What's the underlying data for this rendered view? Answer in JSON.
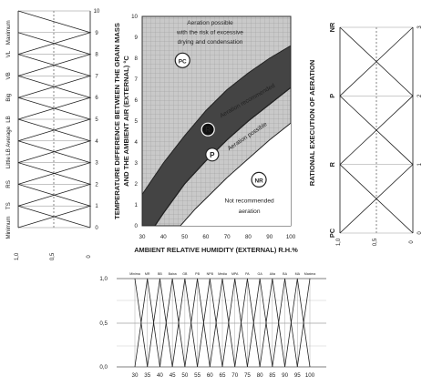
{
  "chart_data": [
    {
      "type": "line",
      "panel": "left-membership",
      "x_ticks": [
        "1,0",
        "0,5",
        "0"
      ],
      "y_ticks": [
        "0",
        "1",
        "2",
        "3",
        "4",
        "5",
        "6",
        "7",
        "8",
        "9",
        "10"
      ],
      "y_range": [
        0,
        10
      ],
      "labels": [
        "Minimum",
        "TS",
        "RS",
        "Little",
        "LB Average",
        "LB",
        "Big",
        "VB",
        "VL",
        "Maximum"
      ],
      "label_positions": [
        0,
        1,
        2,
        3,
        4,
        5,
        6,
        7,
        8,
        9
      ]
    },
    {
      "type": "area",
      "panel": "center-main",
      "xlabel": "AMBIENT RELATIVE HUMIDITY (EXTERNAL) R.H.%",
      "ylabel_line1": "TEMPERATURE DIFFERENCE BETWEEN THE GRAIN MASS",
      "ylabel_line2": "AND THE AMBIENT AIR (EXTERNAL) °C",
      "xlim": [
        30,
        100
      ],
      "ylim": [
        0,
        10
      ],
      "x_ticks": [
        "30",
        "40",
        "50",
        "60",
        "70",
        "80",
        "90",
        "100"
      ],
      "y_ticks": [
        "0",
        "1",
        "2",
        "3",
        "4",
        "5",
        "6",
        "7",
        "8",
        "9",
        "10"
      ],
      "series": [
        {
          "role": "upper",
          "x": [
            30,
            40,
            50,
            60,
            70,
            80,
            90,
            100
          ],
          "y": [
            1.5,
            3.0,
            4.3,
            5.5,
            6.5,
            7.3,
            8.0,
            8.6
          ]
        },
        {
          "role": "lower",
          "x": [
            36,
            40,
            50,
            60,
            70,
            80,
            90,
            100
          ],
          "y": [
            0,
            0.6,
            2.0,
            3.1,
            4.1,
            5.0,
            5.8,
            6.6
          ]
        },
        {
          "role": "thin",
          "x": [
            48,
            55,
            60,
            70,
            80,
            90,
            100
          ],
          "y": [
            0,
            0.8,
            1.3,
            2.3,
            3.2,
            4.1,
            4.9
          ]
        }
      ],
      "annotations": [
        {
          "text": "Aeration possible",
          "x": 62,
          "y": 9.6
        },
        {
          "text": "with the risk of excessive",
          "x": 62,
          "y": 9.15
        },
        {
          "text": "drying and condensation",
          "x": 62,
          "y": 8.7
        },
        {
          "text": "Aeration recommended",
          "x": 80,
          "y": 5.9,
          "angle": -30
        },
        {
          "text": "Aeration possible",
          "x": 80,
          "y": 4.2,
          "angle": -34
        },
        {
          "text": "Not recommended",
          "x": 80.5,
          "y": 1.1
        },
        {
          "text": "aeration",
          "x": 80.5,
          "y": 0.6
        }
      ],
      "badges": [
        {
          "text": "PC",
          "x": 49,
          "y": 7.9
        },
        {
          "text": "R",
          "x": 61,
          "y": 4.6
        },
        {
          "text": "P",
          "x": 63,
          "y": 3.4
        },
        {
          "text": "NR",
          "x": 85,
          "y": 2.2
        }
      ]
    },
    {
      "type": "line",
      "panel": "right-membership",
      "title": "RATIONAL EXECUTION OF AERATION",
      "labels": [
        "NR",
        "P",
        "R",
        "PC"
      ],
      "y_ticks": [
        "3",
        "2",
        "1",
        "0"
      ],
      "x_ticks": [
        "1,0",
        "0,5",
        "0"
      ]
    },
    {
      "type": "line",
      "panel": "bottom-membership",
      "x_ticks": [
        "30",
        "35",
        "40",
        "45",
        "50",
        "55",
        "60",
        "65",
        "70",
        "75",
        "80",
        "85",
        "90",
        "95",
        "100"
      ],
      "y_ticks": [
        "1,0",
        "0,5",
        "0,0"
      ],
      "top_labels": [
        "Minima",
        "MR",
        "BB",
        "Baixa",
        "GB",
        "PB",
        "NPB",
        "Media",
        "MPA",
        "PA",
        "GA",
        "Alta",
        "BA",
        "MA",
        "Maxima"
      ]
    }
  ]
}
